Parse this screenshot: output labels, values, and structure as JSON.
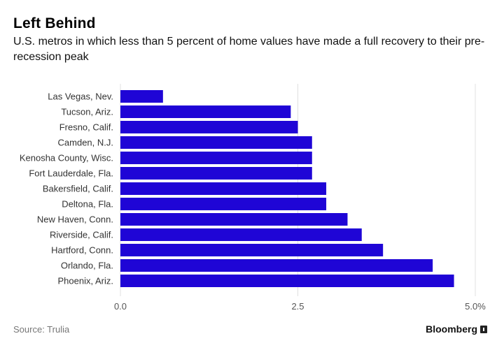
{
  "header": {
    "title": "Left Behind",
    "subtitle": "U.S. metros in which less than 5 percent of home values have made a full recovery to their pre-recession peak"
  },
  "footer": {
    "source": "Source: Trulia",
    "brand": "Bloomberg",
    "brand_icon": "bloomberg-logo-icon"
  },
  "colors": {
    "bar": "#1f05d6",
    "grid": "#e0e0e0"
  },
  "chart_data": {
    "type": "bar",
    "orientation": "horizontal",
    "categories": [
      "Las Vegas, Nev.",
      "Tucson, Ariz.",
      "Fresno, Calif.",
      "Camden, N.J.",
      "Kenosha County, Wisc.",
      "Fort Lauderdale, Fla.",
      "Bakersfield, Calif.",
      "Deltona, Fla.",
      "New Haven, Conn.",
      "Riverside, Calif.",
      "Hartford, Conn.",
      "Orlando, Fla.",
      "Phoenix, Ariz."
    ],
    "values": [
      0.6,
      2.4,
      2.5,
      2.7,
      2.7,
      2.7,
      2.9,
      2.9,
      3.2,
      3.4,
      3.7,
      4.4,
      4.7
    ],
    "xlim": [
      0,
      5
    ],
    "ticks": [
      0,
      2.5,
      5
    ],
    "tick_labels": [
      "0.0",
      "2.5",
      "5.0%"
    ],
    "grid": true,
    "title": "Left Behind",
    "xlabel": "",
    "ylabel": ""
  }
}
